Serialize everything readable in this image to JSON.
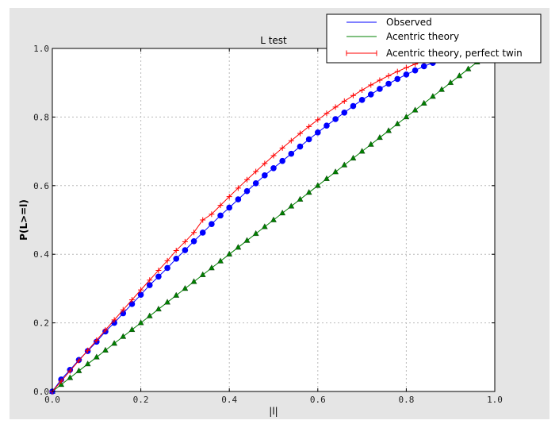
{
  "chart_data": {
    "type": "line",
    "title": "L test",
    "xlabel": "|l|",
    "ylabel": "P(L>=l)",
    "xlim": [
      0,
      1
    ],
    "ylim": [
      0,
      1
    ],
    "xticks": [
      "0.0",
      "0.2",
      "0.4",
      "0.6",
      "0.8",
      "1.0"
    ],
    "yticks": [
      "0.0",
      "0.2",
      "0.4",
      "0.6",
      "0.8",
      "1.0"
    ],
    "grid": true,
    "legend": "top-right",
    "x": [
      0,
      0.02,
      0.04,
      0.06,
      0.08,
      0.1,
      0.12,
      0.14,
      0.16,
      0.18,
      0.2,
      0.22,
      0.24,
      0.26,
      0.28,
      0.3,
      0.32,
      0.34,
      0.36,
      0.38,
      0.4,
      0.42,
      0.44,
      0.46,
      0.48,
      0.5,
      0.52,
      0.54,
      0.56,
      0.58,
      0.6,
      0.62,
      0.64,
      0.66,
      0.68,
      0.7,
      0.72,
      0.74,
      0.76,
      0.78,
      0.8,
      0.82,
      0.84,
      0.86,
      0.88,
      0.9,
      0.92,
      0.94,
      0.96,
      0.98,
      1.0
    ],
    "series": [
      {
        "name": "Observed",
        "color": "#0000ff",
        "marker": "circle",
        "values": [
          0,
          0.035,
          0.063,
          0.092,
          0.118,
          0.145,
          0.175,
          0.2,
          0.228,
          0.255,
          0.282,
          0.31,
          0.335,
          0.36,
          0.387,
          0.412,
          0.438,
          0.463,
          0.488,
          0.513,
          0.536,
          0.56,
          0.584,
          0.607,
          0.63,
          0.651,
          0.672,
          0.693,
          0.714,
          0.735,
          0.755,
          0.775,
          0.794,
          0.813,
          0.832,
          0.85,
          0.866,
          0.882,
          0.897,
          0.911,
          0.924,
          0.936,
          0.948,
          0.958,
          0.968,
          0.976,
          0.984,
          0.99,
          0.995,
          0.999,
          1.0
        ]
      },
      {
        "name": "Acentric theory",
        "color": "#008000",
        "marker": "triangle",
        "values": [
          0,
          0.02,
          0.04,
          0.06,
          0.08,
          0.1,
          0.12,
          0.14,
          0.16,
          0.18,
          0.2,
          0.22,
          0.24,
          0.26,
          0.28,
          0.3,
          0.32,
          0.34,
          0.36,
          0.38,
          0.4,
          0.42,
          0.44,
          0.46,
          0.48,
          0.5,
          0.52,
          0.54,
          0.56,
          0.58,
          0.6,
          0.62,
          0.64,
          0.66,
          0.68,
          0.7,
          0.72,
          0.74,
          0.76,
          0.78,
          0.8,
          0.82,
          0.84,
          0.86,
          0.88,
          0.9,
          0.92,
          0.94,
          0.96,
          0.98,
          1.0
        ]
      },
      {
        "name": "Acentric theory, perfect twin",
        "color": "#ff0000",
        "marker": "plus",
        "values": [
          0,
          0.03,
          0.06,
          0.0899,
          0.1197,
          0.1495,
          0.1791,
          0.2086,
          0.238,
          0.2671,
          0.296,
          0.3247,
          0.3531,
          0.3812,
          0.411,
          0.4365,
          0.4636,
          0.5,
          0.5167,
          0.5426,
          0.568,
          0.593,
          0.6174,
          0.6413,
          0.6647,
          0.6875,
          0.7097,
          0.7313,
          0.7522,
          0.7724,
          0.792,
          0.8108,
          0.8289,
          0.8463,
          0.8628,
          0.8785,
          0.8934,
          0.9074,
          0.9205,
          0.9327,
          0.944,
          0.9543,
          0.9637,
          0.972,
          0.9793,
          0.9855,
          0.9907,
          0.9947,
          0.9976,
          0.9994,
          1.0
        ]
      }
    ]
  }
}
